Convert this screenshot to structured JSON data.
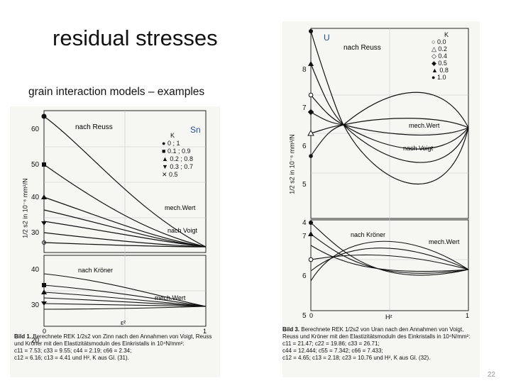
{
  "slide": {
    "title": "residual stresses",
    "subtitle": "grain interaction models – examples",
    "page_number": "22"
  },
  "left_figure": {
    "tag": "Sn",
    "ylabel": "1/2 s2 in 10⁻⁶ mm²/N",
    "xlabel": "ε²",
    "ticks_upper": [
      "60",
      "50",
      "40",
      "30",
      "20"
    ],
    "ticks_lower": [
      "40",
      "30",
      "20"
    ],
    "x_ticks": [
      "0",
      "1"
    ],
    "labels": {
      "reuss": "nach Reuss",
      "voigt": "nach Voigt",
      "mech_upper": "mech.Wert",
      "kroner": "nach Kröner",
      "mech_lower": "mech.Wert"
    },
    "legend_title": "K",
    "legend": [
      "0 ; 1",
      "0.1 ; 0.9",
      "0.2 ; 0.8",
      "0.3 ; 0.7",
      "0.5"
    ],
    "caption": {
      "label": "Bild 1.",
      "text": "Berechnete REK 1/2s2 von Zinn nach den Annahmen von Voigt, Reuss und Kröner mit den Elastizitätsmoduln des Einkristalls in 10⁴N/mm²:",
      "line1": "c11 = 7.53; c33 = 9.55; c44 = 2.19; c66 = 2.34;",
      "line2": "c12 = 6.16; c13 = 4.41 und H², K aus Gl. (31)."
    }
  },
  "right_figure": {
    "tag": "U",
    "ylabel": "1/2 s2 in 10⁻⁶ mm²/N",
    "xlabel": "H²",
    "ticks_upper": [
      "8",
      "7",
      "6",
      "5",
      "4"
    ],
    "ticks_lower": [
      "7",
      "6",
      "5"
    ],
    "x_ticks": [
      "0",
      "1"
    ],
    "labels": {
      "reuss": "nach Reuss",
      "mech_upper": "mech.Wert",
      "voigt": "nach Voigt",
      "kroner": "nach Kröner",
      "mech_lower": "mech.Wert"
    },
    "legend_title": "K",
    "legend": [
      "0.0",
      "0.2",
      "0.4",
      "0.5",
      "0.8",
      "1.0"
    ],
    "caption": {
      "label": "Bild 3.",
      "text": "Berechnete REK 1/2s2 von Uran nach den Annahmen von Voigt, Reuss und Kröner mit den Elastizitätsmoduln des Einkristalls in 10⁴N/mm²:",
      "line1": "c11 = 21.47; c22 = 19.86; c33 = 26.71;",
      "line2": "c44 = 12.444; c55 = 7.342; c66 = 7.433;",
      "line3": "c12 = 4.65; c13 = 2.18; c23 = 10.76 und H², K aus Gl. (32)."
    }
  }
}
